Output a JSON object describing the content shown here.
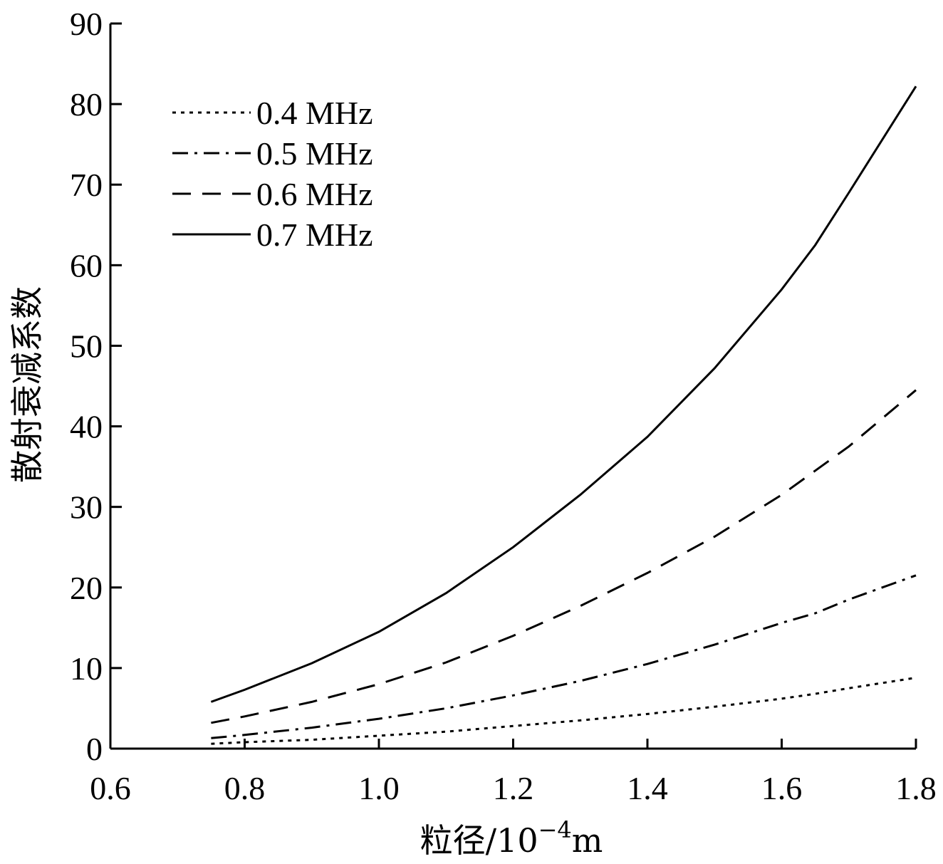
{
  "chart_data": {
    "type": "line",
    "title": "",
    "xlabel": "粒径/10",
    "xlabel_superscript": "−4",
    "xlabel_unit": "m",
    "ylabel": "散射衰减系数",
    "xlim": [
      0.6,
      1.8
    ],
    "ylim": [
      0,
      90
    ],
    "xticks": [
      0.6,
      0.8,
      1.0,
      1.2,
      1.4,
      1.6,
      1.8
    ],
    "xtick_labels": [
      "0.6",
      "0.8",
      "1.0",
      "1.2",
      "1.4",
      "1.6",
      "1.8"
    ],
    "yticks": [
      0,
      10,
      20,
      30,
      40,
      50,
      60,
      70,
      80,
      90
    ],
    "ytick_labels": [
      "0",
      "10",
      "20",
      "30",
      "40",
      "50",
      "60",
      "70",
      "80",
      "90"
    ],
    "grid": false,
    "legend_position": "top-left",
    "x": [
      0.75,
      0.8,
      0.9,
      1.0,
      1.1,
      1.2,
      1.3,
      1.4,
      1.5,
      1.6,
      1.65,
      1.7,
      1.8
    ],
    "series": [
      {
        "name": "0.4 MHz",
        "style": "dotted",
        "values": [
          0.6,
          0.8,
          1.1,
          1.6,
          2.1,
          2.8,
          3.5,
          4.3,
          5.2,
          6.2,
          6.8,
          7.5,
          8.8
        ]
      },
      {
        "name": "0.5 MHz",
        "style": "dash-dot",
        "values": [
          1.3,
          1.7,
          2.6,
          3.7,
          5.0,
          6.6,
          8.4,
          10.5,
          12.9,
          15.6,
          16.8,
          18.5,
          21.5
        ]
      },
      {
        "name": "0.6 MHz",
        "style": "dashed",
        "values": [
          3.2,
          4.0,
          5.8,
          8.0,
          10.7,
          14.0,
          17.7,
          21.8,
          26.3,
          31.5,
          34.5,
          37.5,
          44.5
        ]
      },
      {
        "name": "0.7 MHz",
        "style": "solid",
        "values": [
          5.8,
          7.3,
          10.6,
          14.5,
          19.3,
          25.0,
          31.5,
          38.7,
          47.2,
          57.0,
          62.5,
          69.0,
          82.2
        ]
      }
    ]
  }
}
